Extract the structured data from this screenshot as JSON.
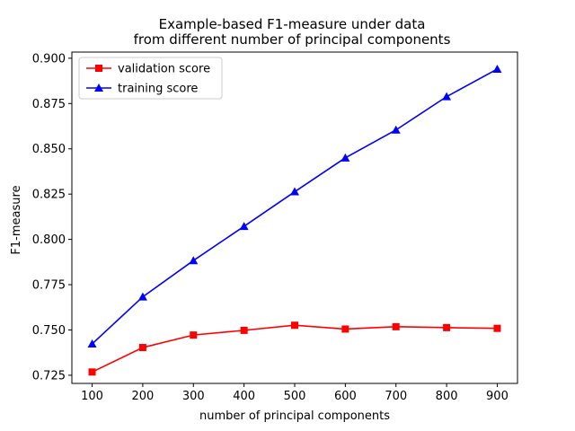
{
  "chart_data": {
    "type": "line",
    "title": [
      "Example-based F1-measure under data",
      "from different number of principal components"
    ],
    "xlabel": "number of principal components",
    "ylabel": "F1-measure",
    "x": [
      100,
      200,
      300,
      400,
      500,
      600,
      700,
      800,
      900
    ],
    "xlim": [
      60,
      940
    ],
    "ylim": [
      0.7205,
      0.9034
    ],
    "xticks": [
      100,
      200,
      300,
      400,
      500,
      600,
      700,
      800,
      900
    ],
    "xtick_labels": [
      "100",
      "200",
      "300",
      "400",
      "500",
      "600",
      "700",
      "800",
      "900"
    ],
    "yticks": [
      0.725,
      0.75,
      0.775,
      0.8,
      0.825,
      0.85,
      0.875,
      0.9
    ],
    "ytick_labels": [
      "0.725",
      "0.750",
      "0.775",
      "0.800",
      "0.825",
      "0.850",
      "0.875",
      "0.900"
    ],
    "grid": false,
    "legend_position": "top-left",
    "series": [
      {
        "name": "validation score",
        "color": "#ff0000",
        "marker": "square",
        "values": [
          0.7268,
          0.7403,
          0.7472,
          0.7498,
          0.7526,
          0.7505,
          0.7518,
          0.7513,
          0.7509
        ]
      },
      {
        "name": "training score",
        "color": "#0000ff",
        "marker": "triangle",
        "values": [
          0.7423,
          0.7683,
          0.7883,
          0.8072,
          0.8263,
          0.845,
          0.8604,
          0.8788,
          0.894
        ]
      }
    ]
  }
}
